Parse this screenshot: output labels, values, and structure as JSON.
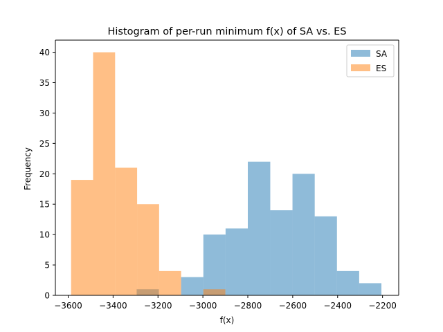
{
  "chart_data": {
    "type": "histogram",
    "title": "Histogram of per-run minimum f(x) of SA vs. ES",
    "xlabel": "f(x)",
    "ylabel": "Frequency",
    "xlim": [
      -3657,
      -2128
    ],
    "ylim": [
      0,
      42
    ],
    "x_ticks": [
      -3600,
      -3400,
      -3200,
      -3000,
      -2800,
      -2600,
      -2400,
      -2200
    ],
    "x_tick_labels": [
      "−3600",
      "−3400",
      "−3200",
      "−3000",
      "−2800",
      "−2600",
      "−2400",
      "−2200"
    ],
    "y_ticks": [
      0,
      5,
      10,
      15,
      20,
      25,
      30,
      35,
      40
    ],
    "y_tick_labels": [
      "0",
      "5",
      "10",
      "15",
      "20",
      "25",
      "30",
      "35",
      "40"
    ],
    "grid": false,
    "legend_position": "top-right",
    "series": [
      {
        "name": "SA",
        "color": "#1f77b4",
        "alpha": 0.5,
        "bins": [
          {
            "x0": -3295,
            "x1": -3196,
            "count": 1
          },
          {
            "x0": -3196,
            "x1": -3097,
            "count": 0
          },
          {
            "x0": -3097,
            "x1": -2998,
            "count": 3
          },
          {
            "x0": -2998,
            "x1": -2899,
            "count": 10
          },
          {
            "x0": -2899,
            "x1": -2800,
            "count": 11
          },
          {
            "x0": -2800,
            "x1": -2700,
            "count": 22
          },
          {
            "x0": -2700,
            "x1": -2601,
            "count": 14
          },
          {
            "x0": -2601,
            "x1": -2502,
            "count": 20
          },
          {
            "x0": -2502,
            "x1": -2403,
            "count": 13
          },
          {
            "x0": -2403,
            "x1": -2304,
            "count": 4
          },
          {
            "x0": -2304,
            "x1": -2205,
            "count": 2
          }
        ]
      },
      {
        "name": "ES",
        "color": "#ff7f0e",
        "alpha": 0.5,
        "bins": [
          {
            "x0": -3587,
            "x1": -3489,
            "count": 19
          },
          {
            "x0": -3489,
            "x1": -3391,
            "count": 40
          },
          {
            "x0": -3391,
            "x1": -3293,
            "count": 21
          },
          {
            "x0": -3293,
            "x1": -3195,
            "count": 15
          },
          {
            "x0": -3195,
            "x1": -3097,
            "count": 4
          },
          {
            "x0": -3097,
            "x1": -2998,
            "count": 0
          },
          {
            "x0": -2998,
            "x1": -2900,
            "count": 1
          }
        ]
      }
    ]
  }
}
